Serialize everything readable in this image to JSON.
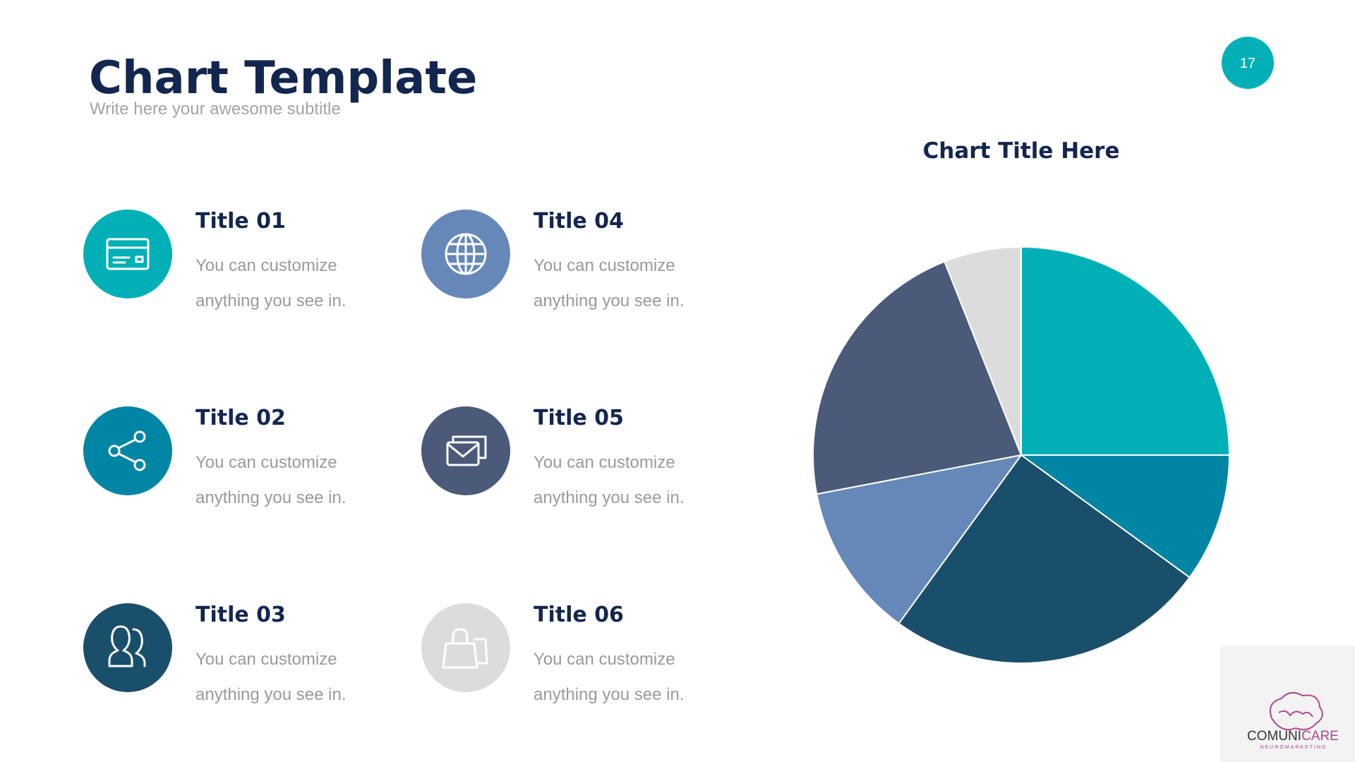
{
  "title": "Chart Template",
  "subtitle": "Write here your awesome subtitle",
  "page_number": "17",
  "items": [
    {
      "title": "Title 01",
      "lines": [
        "You can customize",
        "anything you see in."
      ]
    },
    {
      "title": "Title 02",
      "lines": [
        "You can customize",
        "anything you see in."
      ]
    },
    {
      "title": "Title 03",
      "lines": [
        "You can customize",
        "anything you see in."
      ]
    },
    {
      "title": "Title 04",
      "lines": [
        "You can customize",
        "anything you see in."
      ]
    },
    {
      "title": "Title 05",
      "lines": [
        "You can customize",
        "anything you see in."
      ]
    },
    {
      "title": "Title 06",
      "lines": [
        "You can customize",
        "anything you see in."
      ]
    }
  ],
  "logo": {
    "name": [
      "COMUNI",
      "CARE"
    ],
    "tagline": "NEUROMARKETING"
  },
  "chart_data": {
    "type": "pie",
    "title": "Chart Title Here",
    "values": [
      25,
      10,
      25,
      12,
      22,
      6
    ],
    "colors": [
      "#00b0b6",
      "#0085a5",
      "#1a4f6b",
      "#6688b8",
      "#4a5a78",
      "#dcdcdc"
    ]
  }
}
